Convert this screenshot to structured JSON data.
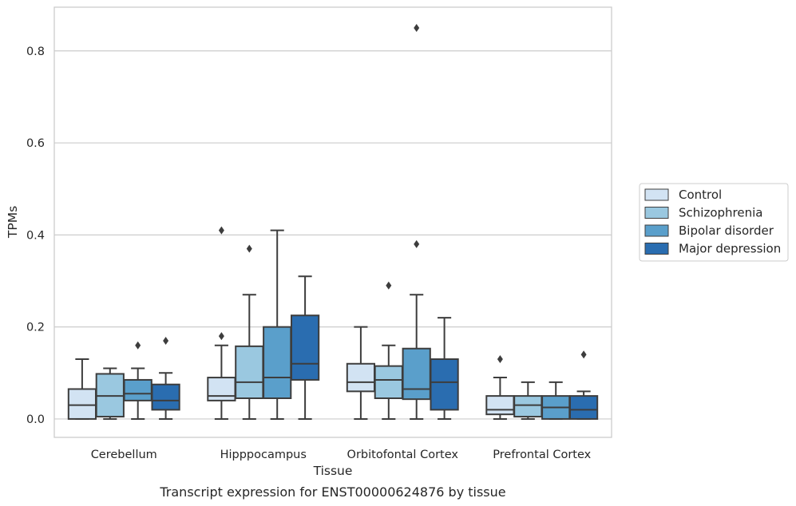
{
  "chart_data": {
    "type": "box",
    "caption": "Transcript expression for ENST00000624876 by tissue",
    "xlabel": "Tissue",
    "ylabel": "TPMs",
    "ylim": [
      -0.04,
      0.895
    ],
    "yticks": [
      0.0,
      0.2,
      0.4,
      0.6,
      0.8
    ],
    "ytick_labels": [
      "0.0",
      "0.2",
      "0.4",
      "0.6",
      "0.8"
    ],
    "grid": "horizontal",
    "legend_position": "right",
    "categories": [
      "Cerebellum",
      "Hipppocampus",
      "Orbitofontal Cortex",
      "Prefrontal Cortex"
    ],
    "series": [
      {
        "name": "Control",
        "color": "#d2e3f3",
        "boxes": [
          {
            "q1": 0.0,
            "median": 0.03,
            "q3": 0.065,
            "whisker_low": 0.0,
            "whisker_high": 0.13,
            "outliers": []
          },
          {
            "q1": 0.04,
            "median": 0.05,
            "q3": 0.09,
            "whisker_low": 0.0,
            "whisker_high": 0.16,
            "outliers": [
              0.18,
              0.41
            ]
          },
          {
            "q1": 0.06,
            "median": 0.08,
            "q3": 0.12,
            "whisker_low": 0.0,
            "whisker_high": 0.2,
            "outliers": []
          },
          {
            "q1": 0.01,
            "median": 0.02,
            "q3": 0.05,
            "whisker_low": 0.0,
            "whisker_high": 0.09,
            "outliers": [
              0.13
            ]
          }
        ]
      },
      {
        "name": "Schizophrenia",
        "color": "#9ac8e0",
        "boxes": [
          {
            "q1": 0.005,
            "median": 0.05,
            "q3": 0.098,
            "whisker_low": 0.0,
            "whisker_high": 0.11,
            "outliers": []
          },
          {
            "q1": 0.045,
            "median": 0.08,
            "q3": 0.158,
            "whisker_low": 0.0,
            "whisker_high": 0.27,
            "outliers": [
              0.37
            ]
          },
          {
            "q1": 0.045,
            "median": 0.085,
            "q3": 0.115,
            "whisker_low": 0.0,
            "whisker_high": 0.16,
            "outliers": [
              0.29
            ]
          },
          {
            "q1": 0.005,
            "median": 0.03,
            "q3": 0.05,
            "whisker_low": 0.0,
            "whisker_high": 0.08,
            "outliers": []
          }
        ]
      },
      {
        "name": "Bipolar disorder",
        "color": "#5a9fcb",
        "boxes": [
          {
            "q1": 0.04,
            "median": 0.055,
            "q3": 0.085,
            "whisker_low": 0.0,
            "whisker_high": 0.11,
            "outliers": [
              0.16
            ]
          },
          {
            "q1": 0.045,
            "median": 0.09,
            "q3": 0.2,
            "whisker_low": 0.0,
            "whisker_high": 0.41,
            "outliers": []
          },
          {
            "q1": 0.043,
            "median": 0.065,
            "q3": 0.153,
            "whisker_low": 0.0,
            "whisker_high": 0.27,
            "outliers": [
              0.38,
              0.85
            ]
          },
          {
            "q1": 0.0,
            "median": 0.025,
            "q3": 0.05,
            "whisker_low": 0.0,
            "whisker_high": 0.08,
            "outliers": []
          }
        ]
      },
      {
        "name": "Major depression",
        "color": "#2a6db0",
        "boxes": [
          {
            "q1": 0.02,
            "median": 0.04,
            "q3": 0.075,
            "whisker_low": 0.0,
            "whisker_high": 0.1,
            "outliers": [
              0.17
            ]
          },
          {
            "q1": 0.085,
            "median": 0.12,
            "q3": 0.225,
            "whisker_low": 0.0,
            "whisker_high": 0.31,
            "outliers": []
          },
          {
            "q1": 0.02,
            "median": 0.08,
            "q3": 0.13,
            "whisker_low": 0.0,
            "whisker_high": 0.22,
            "outliers": []
          },
          {
            "q1": 0.0,
            "median": 0.02,
            "q3": 0.05,
            "whisker_low": 0.0,
            "whisker_high": 0.06,
            "outliers": [
              0.14
            ]
          }
        ]
      }
    ]
  }
}
